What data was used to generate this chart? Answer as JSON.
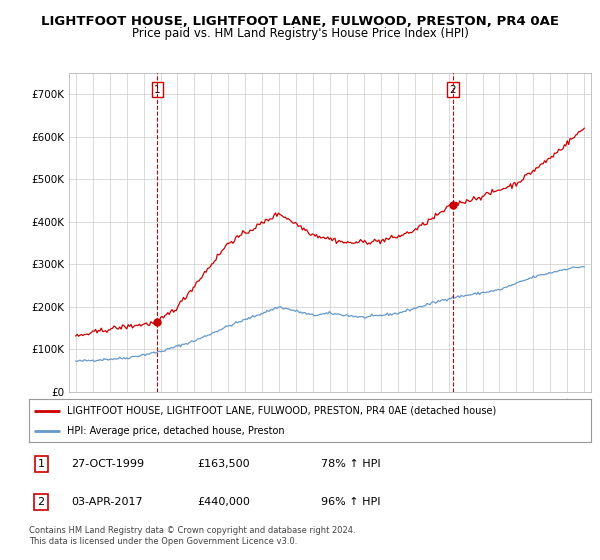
{
  "title": "LIGHTFOOT HOUSE, LIGHTFOOT LANE, FULWOOD, PRESTON, PR4 0AE",
  "subtitle": "Price paid vs. HM Land Registry's House Price Index (HPI)",
  "title_fontsize": 9.5,
  "subtitle_fontsize": 8.5,
  "ylim": [
    0,
    750000
  ],
  "yticks": [
    0,
    100000,
    200000,
    300000,
    400000,
    500000,
    600000,
    700000
  ],
  "ytick_labels": [
    "£0",
    "£100K",
    "£200K",
    "£300K",
    "£400K",
    "£500K",
    "£600K",
    "£700K"
  ],
  "xlim_start": 1994.6,
  "xlim_end": 2025.4,
  "xticks": [
    1995,
    1996,
    1997,
    1998,
    1999,
    2000,
    2001,
    2002,
    2003,
    2004,
    2005,
    2006,
    2007,
    2008,
    2009,
    2010,
    2011,
    2012,
    2013,
    2014,
    2015,
    2016,
    2017,
    2018,
    2019,
    2020,
    2021,
    2022,
    2023,
    2024,
    2025
  ],
  "red_line_color": "#cc0000",
  "blue_line_color": "#6699cc",
  "grid_color": "#cccccc",
  "background_color": "#ffffff",
  "sale1_x": 1999.82,
  "sale1_y": 163500,
  "sale1_label": "1",
  "sale1_vline_x": 1999.82,
  "sale2_x": 2017.25,
  "sale2_y": 440000,
  "sale2_label": "2",
  "sale2_vline_x": 2017.25,
  "legend_red_label": "LIGHTFOOT HOUSE, LIGHTFOOT LANE, FULWOOD, PRESTON, PR4 0AE (detached house)",
  "legend_blue_label": "HPI: Average price, detached house, Preston",
  "table_data": [
    [
      "1",
      "27-OCT-1999",
      "£163,500",
      "78% ↑ HPI"
    ],
    [
      "2",
      "03-APR-2017",
      "£440,000",
      "96% ↑ HPI"
    ]
  ],
  "footnote": "Contains HM Land Registry data © Crown copyright and database right 2024.\nThis data is licensed under the Open Government Licence v3.0."
}
